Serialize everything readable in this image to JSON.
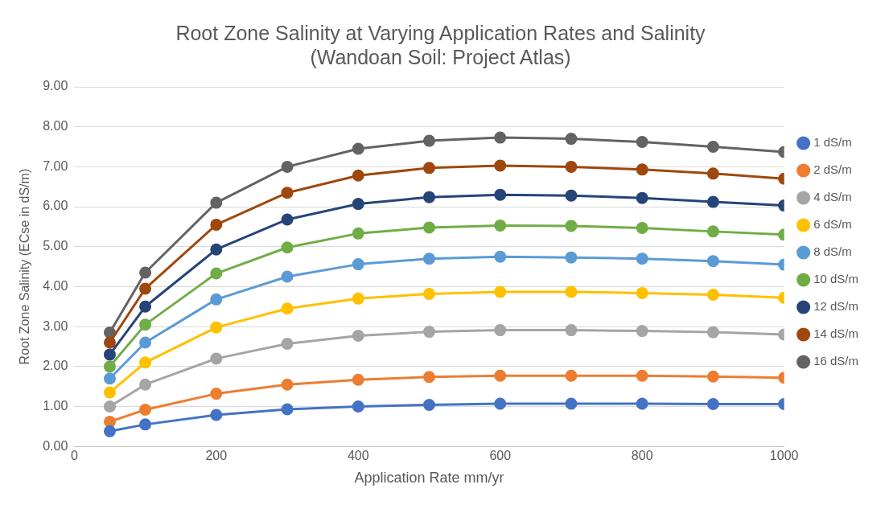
{
  "chart_data": {
    "type": "line",
    "title": [
      "Root Zone Salinity at Varying Application Rates and Salinity",
      "(Wandoan Soil: Project Atlas)"
    ],
    "xlabel": "Application Rate mm/yr",
    "ylabel": "Root Zone Salinity (ECse in dS/m)",
    "x": [
      50,
      100,
      200,
      300,
      400,
      500,
      600,
      700,
      800,
      900,
      1000
    ],
    "xlim": [
      0,
      1000
    ],
    "xticks": [
      0,
      200,
      400,
      600,
      800,
      1000
    ],
    "ylim": [
      0,
      9
    ],
    "yticks": [
      {
        "value": 0,
        "label": "0.00"
      },
      {
        "value": 1,
        "label": "1.00"
      },
      {
        "value": 2,
        "label": "2.00"
      },
      {
        "value": 3,
        "label": "3.00"
      },
      {
        "value": 4,
        "label": "4.00"
      },
      {
        "value": 5,
        "label": "5.00"
      },
      {
        "value": 6,
        "label": "6.00"
      },
      {
        "value": 7,
        "label": "7.00"
      },
      {
        "value": 8,
        "label": "8.00"
      },
      {
        "value": 9,
        "label": "9.00"
      }
    ],
    "grid": "y",
    "legend": "right",
    "marker": "circle",
    "line_style": "solid",
    "series": [
      {
        "name": "1 dS/m",
        "color": "#4472c4",
        "values": [
          0.38,
          0.55,
          0.79,
          0.93,
          1.0,
          1.04,
          1.07,
          1.07,
          1.07,
          1.06,
          1.06
        ]
      },
      {
        "name": "2 dS/m",
        "color": "#ed7d31",
        "values": [
          0.62,
          0.92,
          1.32,
          1.55,
          1.67,
          1.74,
          1.77,
          1.77,
          1.77,
          1.75,
          1.72
        ]
      },
      {
        "name": "4 dS/m",
        "color": "#a5a5a5",
        "values": [
          1.0,
          1.55,
          2.2,
          2.57,
          2.77,
          2.87,
          2.91,
          2.91,
          2.89,
          2.86,
          2.8
        ]
      },
      {
        "name": "6 dS/m",
        "color": "#ffc000",
        "values": [
          1.35,
          2.1,
          2.98,
          3.45,
          3.7,
          3.82,
          3.87,
          3.87,
          3.84,
          3.8,
          3.72
        ]
      },
      {
        "name": "8 dS/m",
        "color": "#5b9bd5",
        "values": [
          1.7,
          2.6,
          3.68,
          4.25,
          4.56,
          4.7,
          4.75,
          4.73,
          4.7,
          4.64,
          4.55
        ]
      },
      {
        "name": "10 dS/m",
        "color": "#70ad47",
        "values": [
          2.0,
          3.05,
          4.33,
          4.98,
          5.33,
          5.48,
          5.53,
          5.52,
          5.47,
          5.38,
          5.3
        ]
      },
      {
        "name": "12 dS/m",
        "color": "#264478",
        "values": [
          2.3,
          3.5,
          4.93,
          5.68,
          6.07,
          6.24,
          6.3,
          6.28,
          6.22,
          6.12,
          6.03
        ]
      },
      {
        "name": "14 dS/m",
        "color": "#9e480e",
        "values": [
          2.6,
          3.95,
          5.55,
          6.35,
          6.78,
          6.97,
          7.03,
          7.0,
          6.93,
          6.83,
          6.7
        ]
      },
      {
        "name": "16 dS/m",
        "color": "#636363",
        "values": [
          2.85,
          4.35,
          6.1,
          7.0,
          7.45,
          7.65,
          7.73,
          7.7,
          7.62,
          7.5,
          7.37
        ]
      }
    ]
  }
}
